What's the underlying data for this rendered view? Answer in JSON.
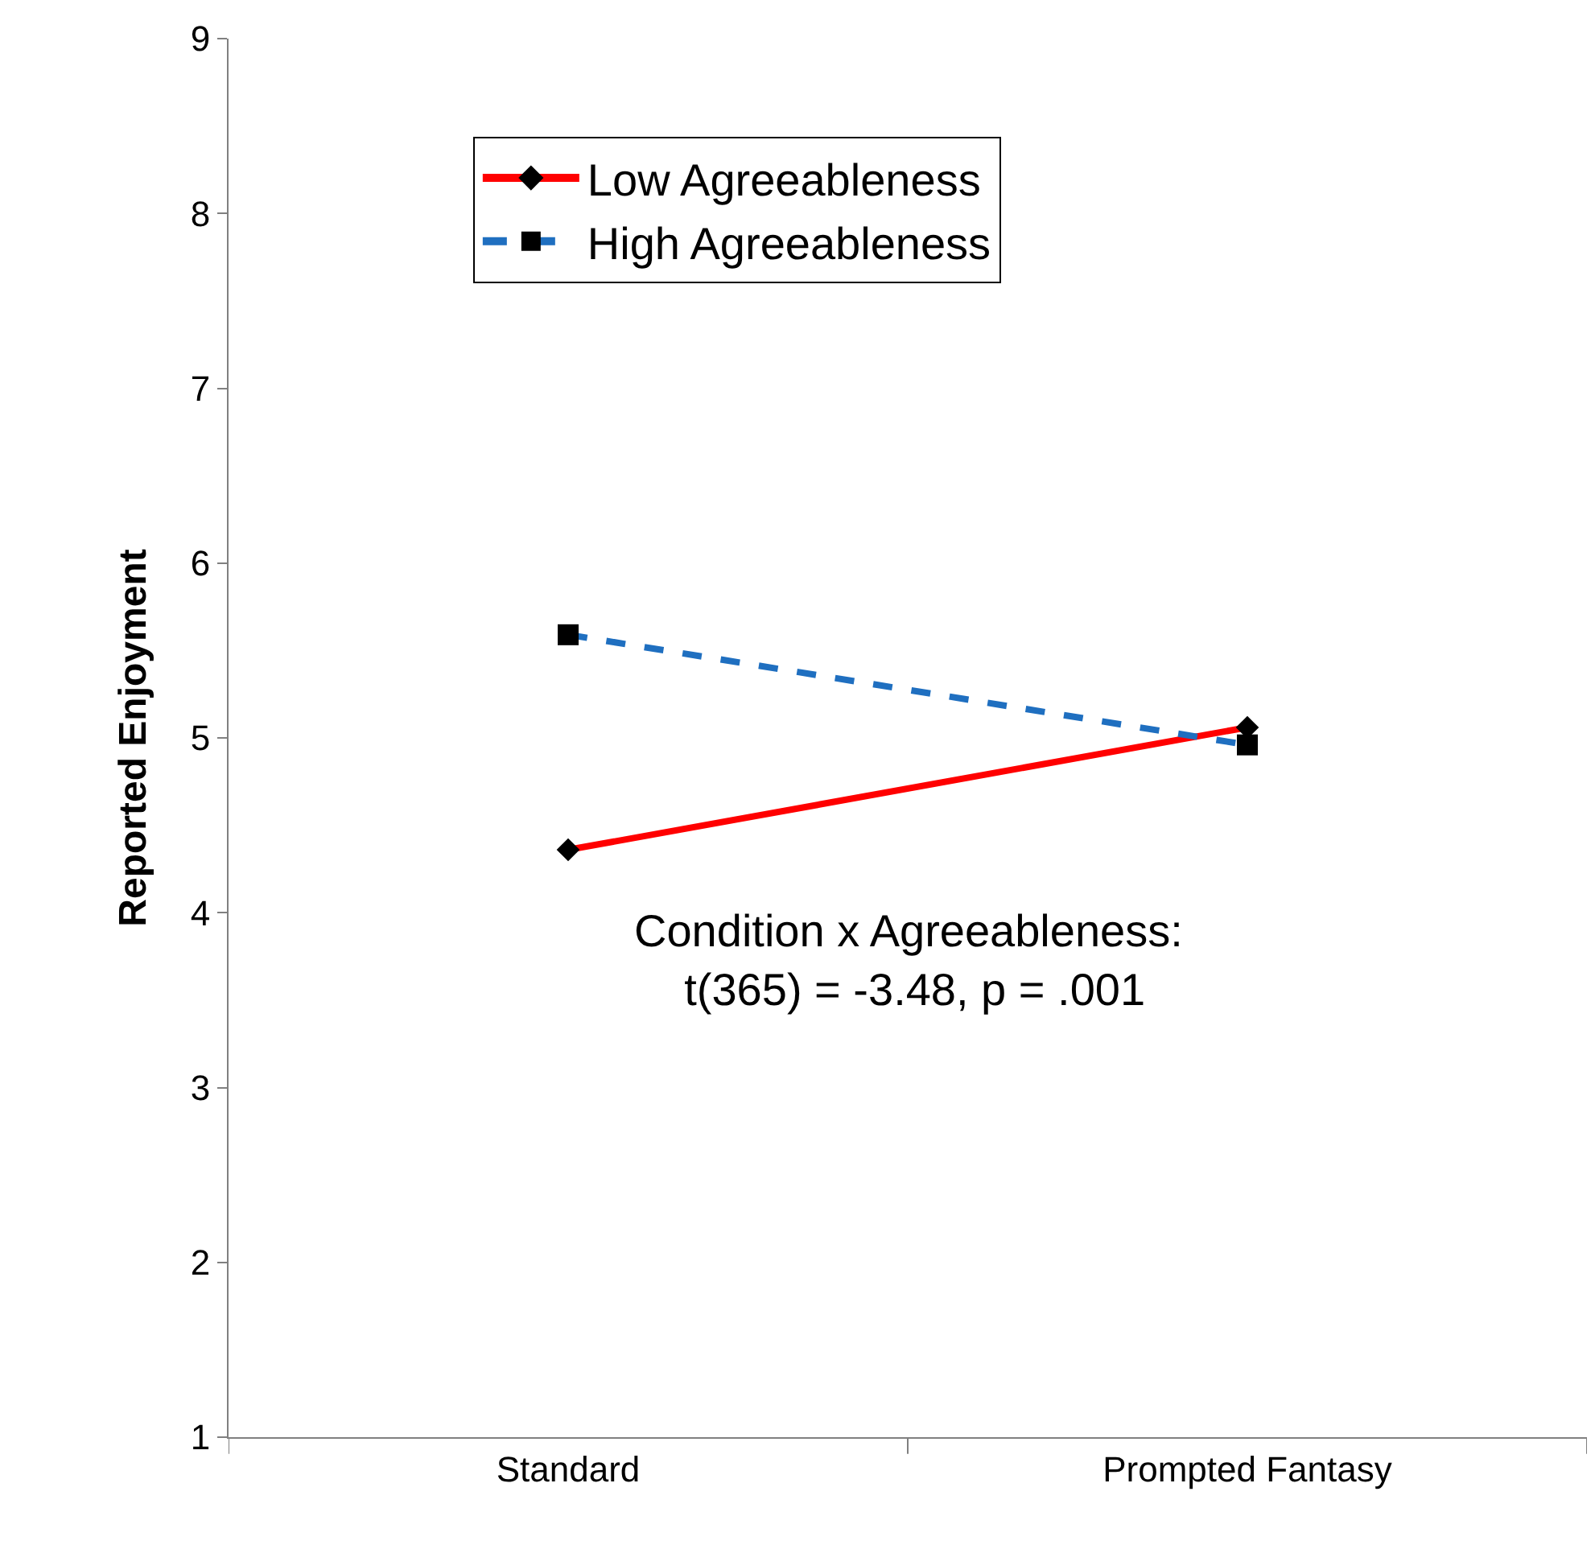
{
  "chart_data": {
    "type": "line",
    "ylabel": "Reported Enjoyment",
    "categories": [
      "Standard",
      "Prompted Fantasy"
    ],
    "series": [
      {
        "name": "Low Agreeableness",
        "color": "#ff0000",
        "values": [
          4.36,
          5.06
        ],
        "marker": "diamond",
        "line_style": "solid"
      },
      {
        "name": "High Agreeableness",
        "color": "#1f6fc0",
        "values": [
          5.59,
          4.96
        ],
        "marker": "square",
        "line_style": "dashed"
      }
    ],
    "ylim": [
      1,
      9
    ],
    "yticks": [
      1,
      2,
      3,
      4,
      5,
      6,
      7,
      8,
      9
    ],
    "legend": "top",
    "annotations": [
      "Condition x Agreeableness:\n t(365) = -3.48, p = .001"
    ]
  }
}
